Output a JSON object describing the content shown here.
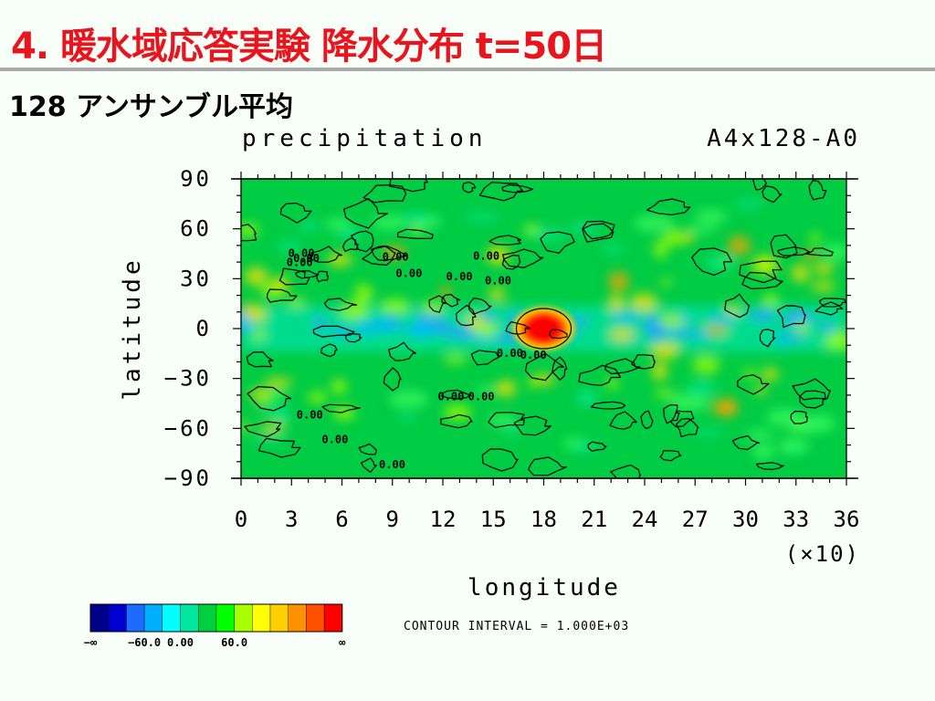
{
  "slide": {
    "title": "4. 暖水域応答実験 降水分布 t=50日",
    "subtitle": "128 アンサンブル平均"
  },
  "chart_data": {
    "type": "heatmap",
    "title": "precipitation",
    "run_label": "A4x128-A0",
    "xlabel": "longitude",
    "ylabel": "latitude",
    "x_ticks": [
      "0",
      "3",
      "6",
      "9",
      "12",
      "15",
      "18",
      "21",
      "24",
      "27",
      "30",
      "33",
      "36"
    ],
    "x_multiplier": "(×10)",
    "y_ticks": [
      "90",
      "60",
      "30",
      "0",
      "−30",
      "−60",
      "−90"
    ],
    "xlim": [
      0,
      36
    ],
    "ylim": [
      -90,
      90
    ],
    "contour_interval_text": "CONTOUR INTERVAL = 1.000E+03",
    "contour_labels": [
      "0.00"
    ],
    "colorbar": {
      "colors": [
        "#00008b",
        "#0000d0",
        "#1e6bff",
        "#00b0ff",
        "#00ffff",
        "#00e8a0",
        "#00d040",
        "#00ff00",
        "#a8ff00",
        "#ffff00",
        "#ffd000",
        "#ff9000",
        "#ff5000",
        "#ff0000"
      ],
      "tick_labels": [
        "−∞",
        "−60.0",
        "0.00",
        "60.0",
        "∞"
      ]
    },
    "features": [
      {
        "name": "warm-pool-precipitation-maximum",
        "lon": 180,
        "lat": 0,
        "level": "highest"
      },
      {
        "name": "equatorial-band",
        "lat": 0,
        "level": "elevated"
      },
      {
        "name": "background",
        "level": "near-zero"
      }
    ]
  }
}
